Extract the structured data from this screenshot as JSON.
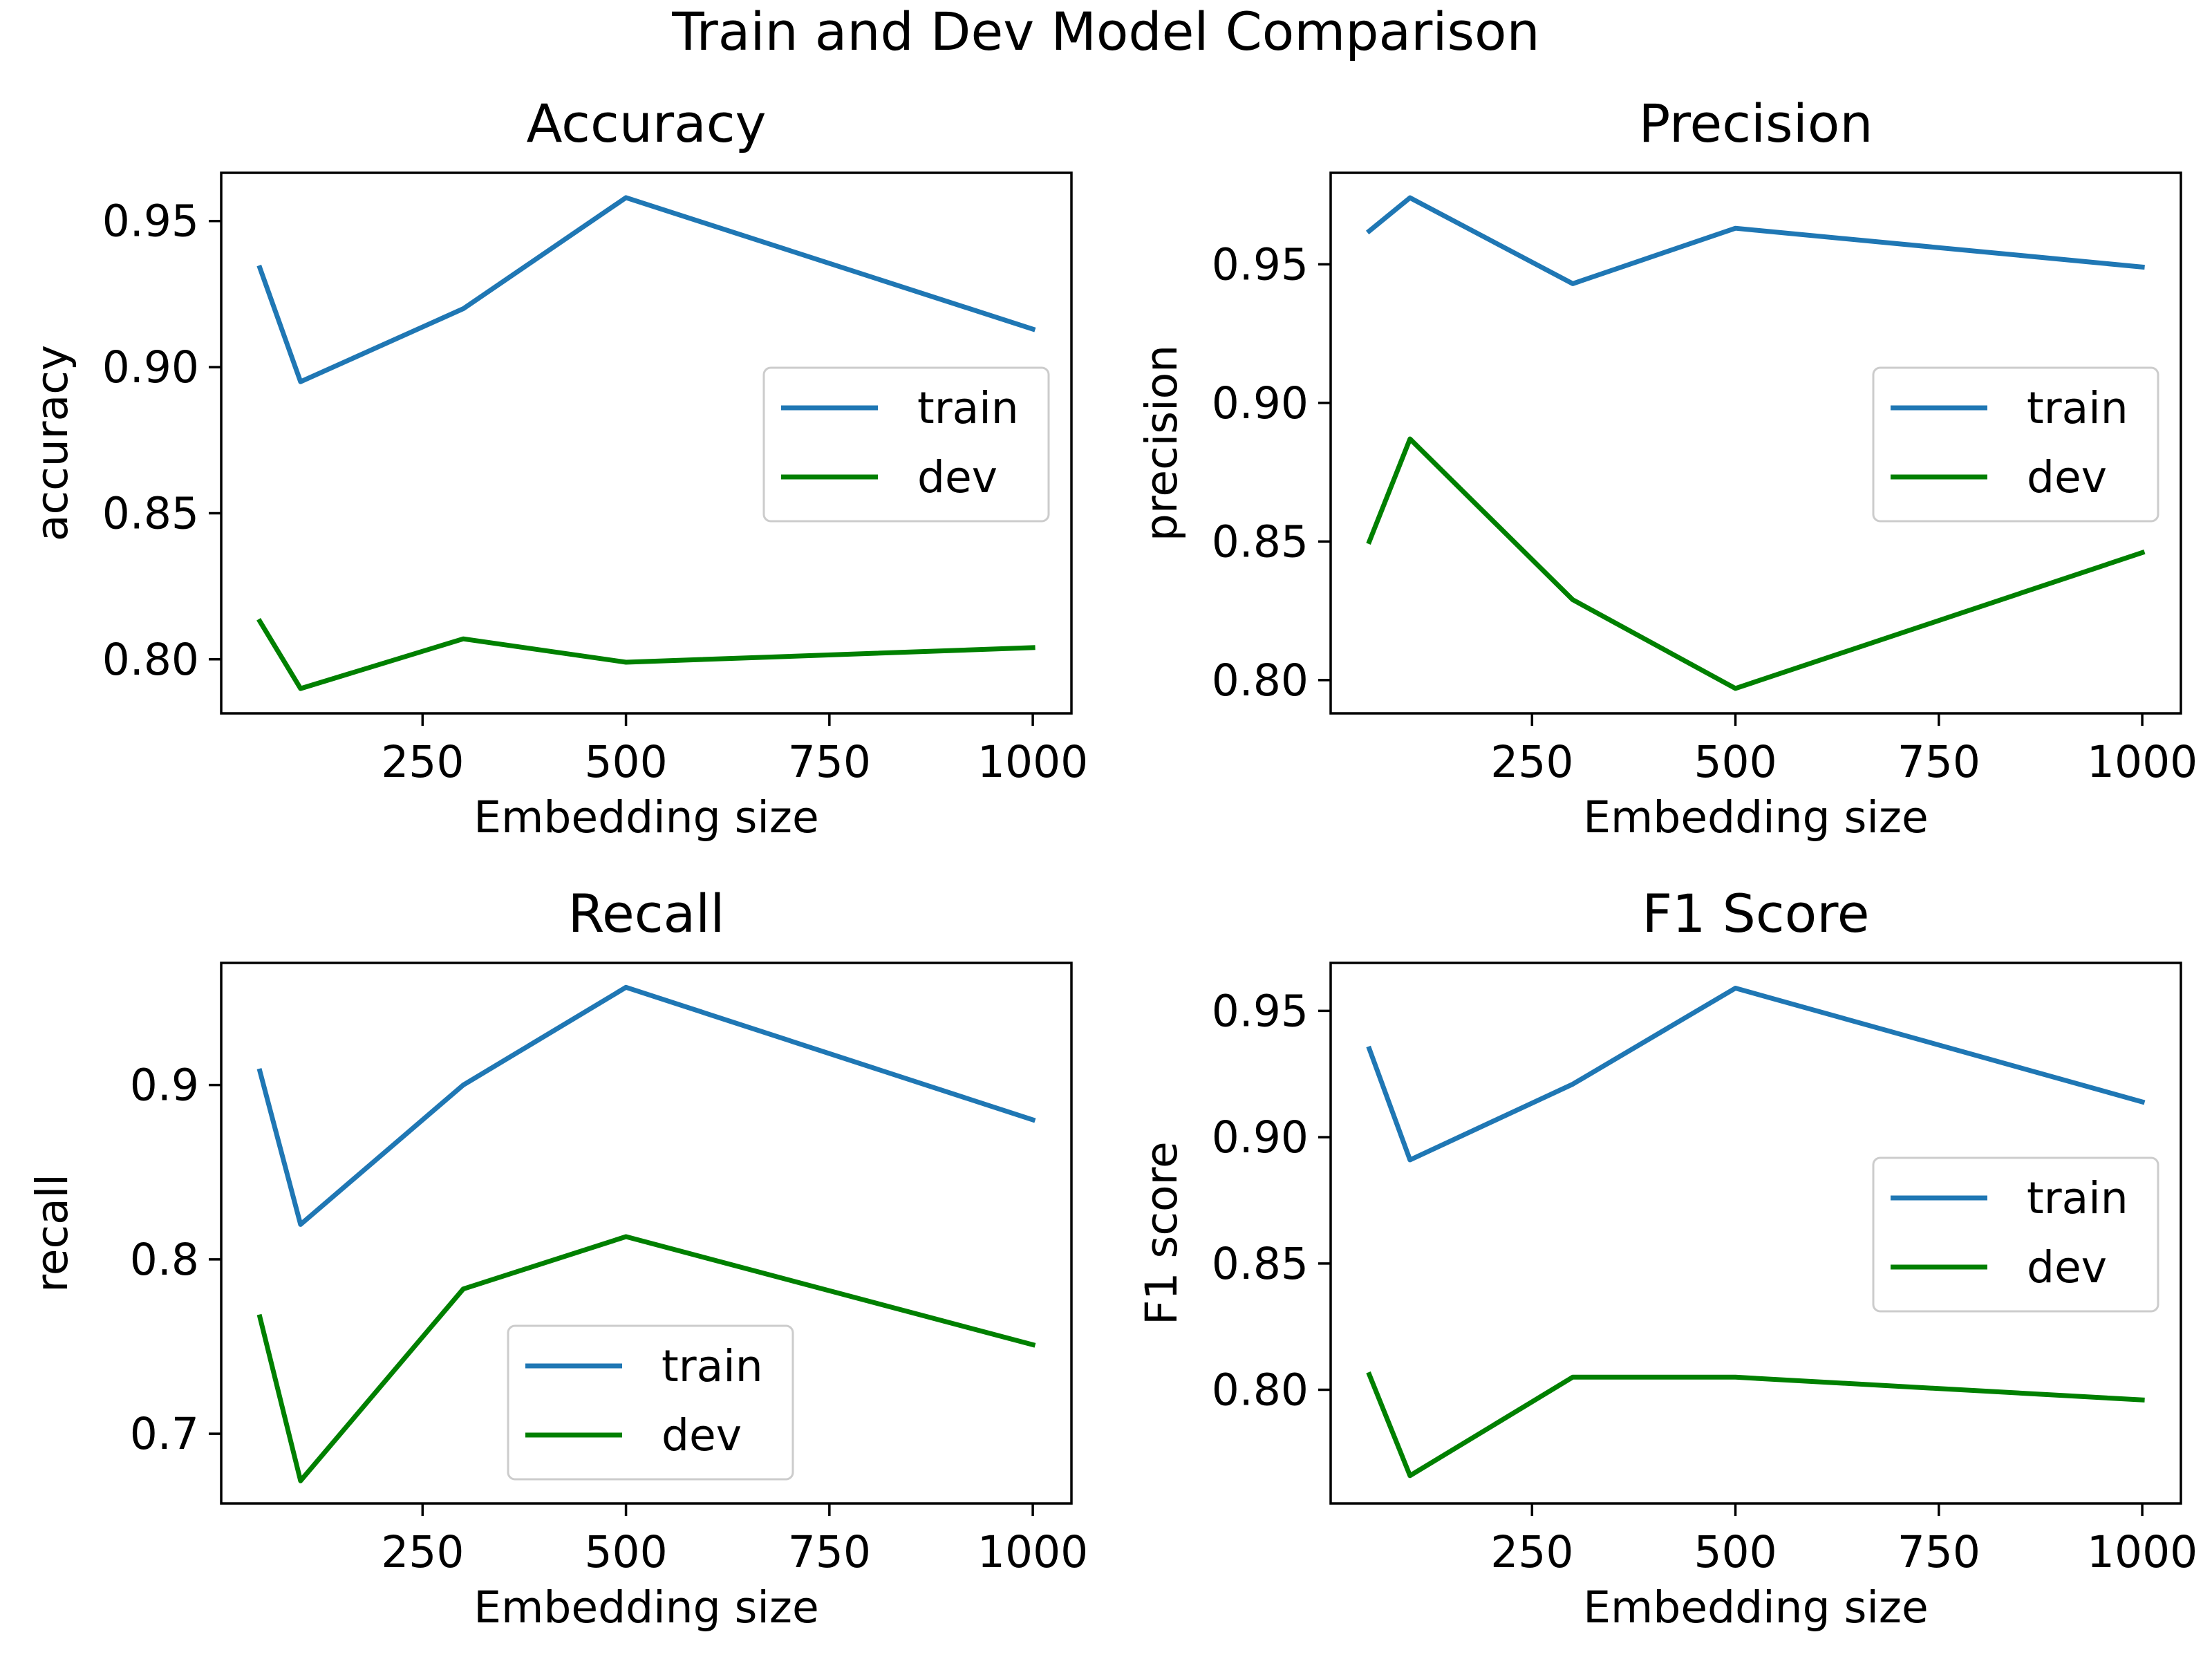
{
  "figure": {
    "title": "Train and Dev Model Comparison"
  },
  "colors": {
    "train": "#1f77b4",
    "dev": "#008000"
  },
  "chart_data": [
    {
      "type": "line",
      "title": "Accuracy",
      "xlabel": "Embedding size",
      "ylabel": "accuracy",
      "xlim": [
        2.5,
        1047.5
      ],
      "ylim": [
        0.7815,
        0.9665
      ],
      "xticks": [
        250,
        500,
        750,
        1000
      ],
      "xtick_labels": [
        "250",
        "500",
        "750",
        "1000"
      ],
      "yticks": [
        0.8,
        0.85,
        0.9,
        0.95
      ],
      "ytick_labels": [
        "0.80",
        "0.85",
        "0.90",
        "0.95"
      ],
      "legend": "center-right",
      "x": [
        50,
        100,
        300,
        500,
        1000
      ],
      "series": [
        {
          "name": "train",
          "values": [
            0.934,
            0.895,
            0.92,
            0.958,
            0.913
          ]
        },
        {
          "name": "dev",
          "values": [
            0.813,
            0.79,
            0.807,
            0.799,
            0.804
          ]
        }
      ]
    },
    {
      "type": "line",
      "title": "Precision",
      "xlabel": "Embedding size",
      "ylabel": "precision",
      "xlim": [
        2.5,
        1047.5
      ],
      "ylim": [
        0.788,
        0.983
      ],
      "xticks": [
        250,
        500,
        750,
        1000
      ],
      "xtick_labels": [
        "250",
        "500",
        "750",
        "1000"
      ],
      "yticks": [
        0.8,
        0.85,
        0.9,
        0.95
      ],
      "ytick_labels": [
        "0.80",
        "0.85",
        "0.90",
        "0.95"
      ],
      "legend": "center-right",
      "x": [
        50,
        100,
        300,
        500,
        1000
      ],
      "series": [
        {
          "name": "train",
          "values": [
            0.962,
            0.974,
            0.943,
            0.963,
            0.949
          ]
        },
        {
          "name": "dev",
          "values": [
            0.85,
            0.887,
            0.829,
            0.797,
            0.846
          ]
        }
      ]
    },
    {
      "type": "line",
      "title": "Recall",
      "xlabel": "Embedding size",
      "ylabel": "recall",
      "xlim": [
        2.5,
        1047.5
      ],
      "ylim": [
        0.66,
        0.97
      ],
      "xticks": [
        250,
        500,
        750,
        1000
      ],
      "xtick_labels": [
        "250",
        "500",
        "750",
        "1000"
      ],
      "yticks": [
        0.7,
        0.8,
        0.9
      ],
      "ytick_labels": [
        "0.7",
        "0.8",
        "0.9"
      ],
      "legend": "lower-center",
      "x": [
        50,
        100,
        300,
        500,
        1000
      ],
      "series": [
        {
          "name": "train",
          "values": [
            0.908,
            0.82,
            0.9,
            0.956,
            0.88
          ]
        },
        {
          "name": "dev",
          "values": [
            0.767,
            0.673,
            0.783,
            0.813,
            0.751
          ]
        }
      ]
    },
    {
      "type": "line",
      "title": "F1 Score",
      "xlabel": "Embedding size",
      "ylabel": "F1 score",
      "xlim": [
        2.5,
        1047.5
      ],
      "ylim": [
        0.755,
        0.969
      ],
      "xticks": [
        250,
        500,
        750,
        1000
      ],
      "xtick_labels": [
        "250",
        "500",
        "750",
        "1000"
      ],
      "yticks": [
        0.8,
        0.85,
        0.9,
        0.95
      ],
      "ytick_labels": [
        "0.80",
        "0.85",
        "0.90",
        "0.95"
      ],
      "legend": "center-right",
      "x": [
        50,
        100,
        300,
        500,
        1000
      ],
      "series": [
        {
          "name": "train",
          "values": [
            0.935,
            0.891,
            0.921,
            0.959,
            0.914
          ]
        },
        {
          "name": "dev",
          "values": [
            0.806,
            0.766,
            0.805,
            0.805,
            0.796
          ]
        }
      ]
    }
  ]
}
